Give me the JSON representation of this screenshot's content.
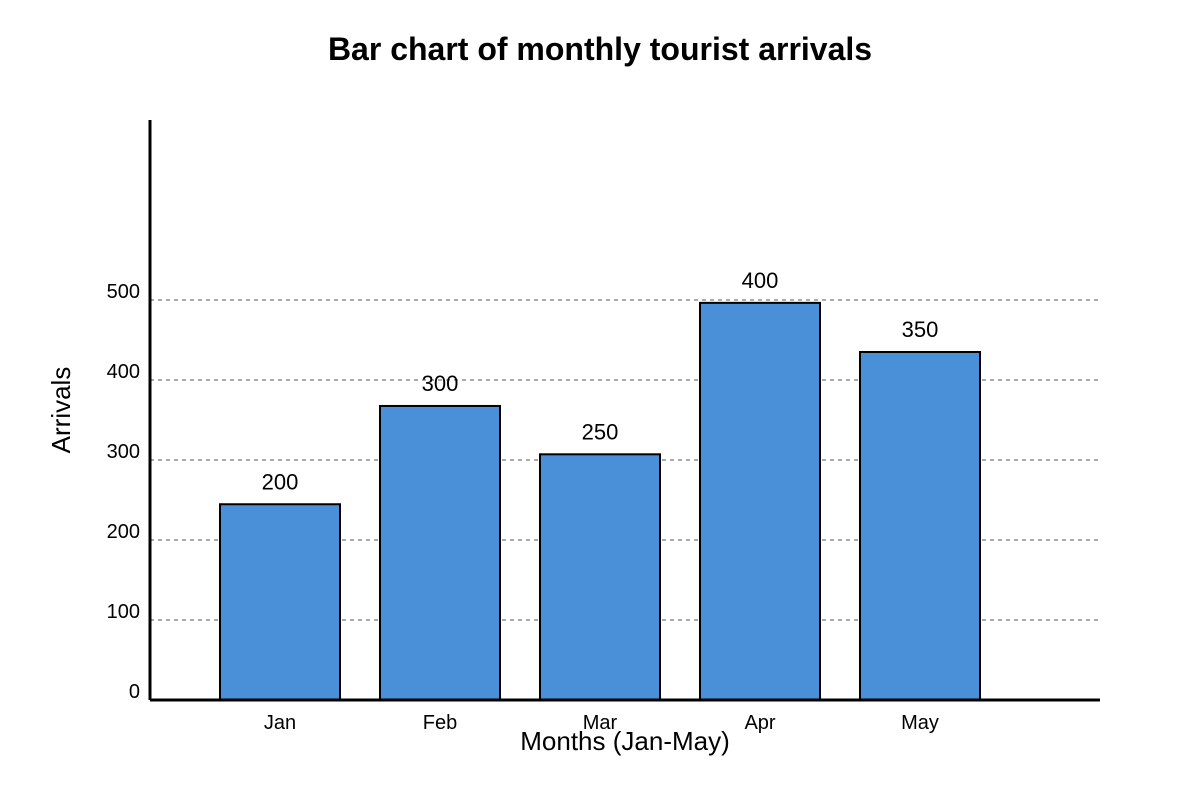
{
  "chart_data": {
    "type": "bar",
    "title": "Bar chart of monthly tourist arrivals",
    "xlabel": "Months (Jan-May)",
    "ylabel": "Arrivals",
    "categories": [
      "Jan",
      "Feb",
      "Mar",
      "Apr",
      "May"
    ],
    "values": [
      200,
      300,
      250,
      400,
      350
    ],
    "bar_heights_on_axis": [
      243,
      365,
      305,
      493,
      432
    ],
    "y_ticks": [
      0,
      100,
      200,
      300,
      400,
      500
    ],
    "ylim": [
      0,
      720
    ],
    "grid": true,
    "legend": "none",
    "colors": {
      "bar_fill": "#4a90d9",
      "bar_stroke": "#000000",
      "axis": "#000000",
      "grid": "#555555"
    }
  }
}
